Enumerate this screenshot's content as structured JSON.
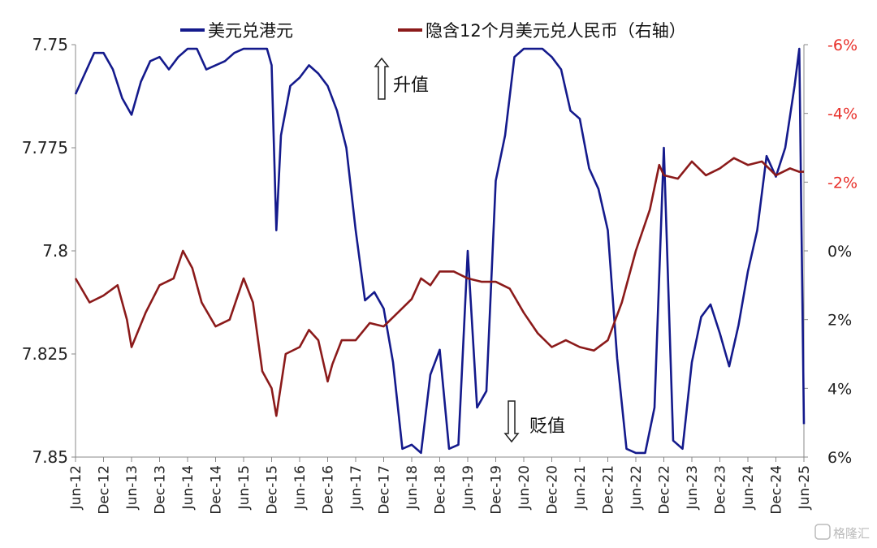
{
  "chart_data": {
    "type": "line",
    "series": [
      {
        "name": "美元兑港元",
        "axis": "left",
        "color": "#141a8c",
        "points": [
          [
            "2012-06",
            7.762
          ],
          [
            "2012-08",
            7.757
          ],
          [
            "2012-10",
            7.752
          ],
          [
            "2012-12",
            7.752
          ],
          [
            "2013-02",
            7.756
          ],
          [
            "2013-04",
            7.763
          ],
          [
            "2013-06",
            7.767
          ],
          [
            "2013-08",
            7.759
          ],
          [
            "2013-10",
            7.754
          ],
          [
            "2013-12",
            7.753
          ],
          [
            "2014-02",
            7.756
          ],
          [
            "2014-04",
            7.753
          ],
          [
            "2014-06",
            7.751
          ],
          [
            "2014-08",
            7.751
          ],
          [
            "2014-10",
            7.756
          ],
          [
            "2014-12",
            7.755
          ],
          [
            "2015-02",
            7.754
          ],
          [
            "2015-04",
            7.752
          ],
          [
            "2015-06",
            7.751
          ],
          [
            "2015-08",
            7.751
          ],
          [
            "2015-10",
            7.751
          ],
          [
            "2015-11",
            7.751
          ],
          [
            "2015-12",
            7.755
          ],
          [
            "2016-01",
            7.795
          ],
          [
            "2016-02",
            7.772
          ],
          [
            "2016-04",
            7.76
          ],
          [
            "2016-06",
            7.758
          ],
          [
            "2016-08",
            7.755
          ],
          [
            "2016-10",
            7.757
          ],
          [
            "2016-12",
            7.76
          ],
          [
            "2017-02",
            7.766
          ],
          [
            "2017-04",
            7.775
          ],
          [
            "2017-06",
            7.795
          ],
          [
            "2017-08",
            7.812
          ],
          [
            "2017-10",
            7.81
          ],
          [
            "2017-12",
            7.814
          ],
          [
            "2018-02",
            7.827
          ],
          [
            "2018-04",
            7.848
          ],
          [
            "2018-06",
            7.847
          ],
          [
            "2018-08",
            7.849
          ],
          [
            "2018-10",
            7.83
          ],
          [
            "2018-12",
            7.824
          ],
          [
            "2019-02",
            7.848
          ],
          [
            "2019-04",
            7.847
          ],
          [
            "2019-06",
            7.8
          ],
          [
            "2019-08",
            7.838
          ],
          [
            "2019-10",
            7.834
          ],
          [
            "2019-12",
            7.783
          ],
          [
            "2020-02",
            7.772
          ],
          [
            "2020-04",
            7.753
          ],
          [
            "2020-06",
            7.751
          ],
          [
            "2020-08",
            7.751
          ],
          [
            "2020-10",
            7.751
          ],
          [
            "2020-12",
            7.753
          ],
          [
            "2021-02",
            7.756
          ],
          [
            "2021-04",
            7.766
          ],
          [
            "2021-06",
            7.768
          ],
          [
            "2021-08",
            7.78
          ],
          [
            "2021-10",
            7.785
          ],
          [
            "2021-12",
            7.795
          ],
          [
            "2022-02",
            7.826
          ],
          [
            "2022-04",
            7.848
          ],
          [
            "2022-06",
            7.849
          ],
          [
            "2022-08",
            7.849
          ],
          [
            "2022-10",
            7.838
          ],
          [
            "2022-12",
            7.775
          ],
          [
            "2023-02",
            7.846
          ],
          [
            "2023-04",
            7.848
          ],
          [
            "2023-06",
            7.827
          ],
          [
            "2023-08",
            7.816
          ],
          [
            "2023-10",
            7.813
          ],
          [
            "2023-12",
            7.82
          ],
          [
            "2024-02",
            7.828
          ],
          [
            "2024-04",
            7.818
          ],
          [
            "2024-06",
            7.805
          ],
          [
            "2024-08",
            7.795
          ],
          [
            "2024-10",
            7.777
          ],
          [
            "2024-12",
            7.782
          ],
          [
            "2025-02",
            7.775
          ],
          [
            "2025-04",
            7.76
          ],
          [
            "2025-05",
            7.751
          ],
          [
            "2025-06",
            7.842
          ]
        ]
      },
      {
        "name": "隐含12个月美元兑人民币（右轴）",
        "axis": "right",
        "color": "#8b1a1a",
        "points": [
          [
            "2012-06",
            0.8
          ],
          [
            "2012-09",
            1.5
          ],
          [
            "2012-12",
            1.3
          ],
          [
            "2013-03",
            1.0
          ],
          [
            "2013-05",
            2.0
          ],
          [
            "2013-06",
            2.8
          ],
          [
            "2013-09",
            1.8
          ],
          [
            "2013-12",
            1.0
          ],
          [
            "2014-03",
            0.8
          ],
          [
            "2014-05",
            0.0
          ],
          [
            "2014-07",
            0.5
          ],
          [
            "2014-09",
            1.5
          ],
          [
            "2014-12",
            2.2
          ],
          [
            "2015-03",
            2.0
          ],
          [
            "2015-06",
            0.8
          ],
          [
            "2015-08",
            1.5
          ],
          [
            "2015-10",
            3.5
          ],
          [
            "2015-12",
            4.0
          ],
          [
            "2016-01",
            4.8
          ],
          [
            "2016-03",
            3.0
          ],
          [
            "2016-06",
            2.8
          ],
          [
            "2016-08",
            2.3
          ],
          [
            "2016-10",
            2.6
          ],
          [
            "2016-12",
            3.8
          ],
          [
            "2017-01",
            3.3
          ],
          [
            "2017-03",
            2.6
          ],
          [
            "2017-06",
            2.6
          ],
          [
            "2017-09",
            2.1
          ],
          [
            "2017-12",
            2.2
          ],
          [
            "2018-03",
            1.8
          ],
          [
            "2018-06",
            1.4
          ],
          [
            "2018-08",
            0.8
          ],
          [
            "2018-10",
            1.0
          ],
          [
            "2018-12",
            0.6
          ],
          [
            "2019-03",
            0.6
          ],
          [
            "2019-06",
            0.8
          ],
          [
            "2019-09",
            0.9
          ],
          [
            "2019-12",
            0.9
          ],
          [
            "2020-03",
            1.1
          ],
          [
            "2020-06",
            1.8
          ],
          [
            "2020-09",
            2.4
          ],
          [
            "2020-12",
            2.8
          ],
          [
            "2021-03",
            2.6
          ],
          [
            "2021-06",
            2.8
          ],
          [
            "2021-09",
            2.9
          ],
          [
            "2021-12",
            2.6
          ],
          [
            "2022-03",
            1.5
          ],
          [
            "2022-06",
            0.0
          ],
          [
            "2022-09",
            -1.2
          ],
          [
            "2022-11",
            -2.5
          ],
          [
            "2022-12",
            -2.2
          ],
          [
            "2023-03",
            -2.1
          ],
          [
            "2023-06",
            -2.6
          ],
          [
            "2023-09",
            -2.2
          ],
          [
            "2023-12",
            -2.4
          ],
          [
            "2024-03",
            -2.7
          ],
          [
            "2024-06",
            -2.5
          ],
          [
            "2024-09",
            -2.6
          ],
          [
            "2024-12",
            -2.2
          ],
          [
            "2025-03",
            -2.4
          ],
          [
            "2025-05",
            -2.3
          ],
          [
            "2025-06",
            -2.3
          ]
        ]
      }
    ],
    "y_left": {
      "range": [
        7.85,
        7.75
      ],
      "ticks": [
        "7.75",
        "7.775",
        "7.8",
        "7.825",
        "7.85"
      ],
      "inverted": true
    },
    "y_right": {
      "range": [
        6,
        -6
      ],
      "ticks": [
        "-6%",
        "-4%",
        "-2%",
        "0%",
        "2%",
        "4%",
        "6%"
      ],
      "inverted": true
    },
    "x_ticks": [
      "Jun-12",
      "Dec-12",
      "Jun-13",
      "Dec-13",
      "Jun-14",
      "Dec-14",
      "Jun-15",
      "Dec-15",
      "Jun-16",
      "Dec-16",
      "Jun-17",
      "Dec-17",
      "Jun-18",
      "Dec-18",
      "Jun-19",
      "Dec-19",
      "Jun-20",
      "Dec-20",
      "Jun-21",
      "Dec-21",
      "Jun-22",
      "Dec-22",
      "Jun-23",
      "Dec-23",
      "Jun-24",
      "Dec-24",
      "Jun-25"
    ],
    "annotations": {
      "up": "升值",
      "down": "贬值"
    },
    "legend_position": "top",
    "grid": false,
    "watermark": "格隆汇"
  }
}
